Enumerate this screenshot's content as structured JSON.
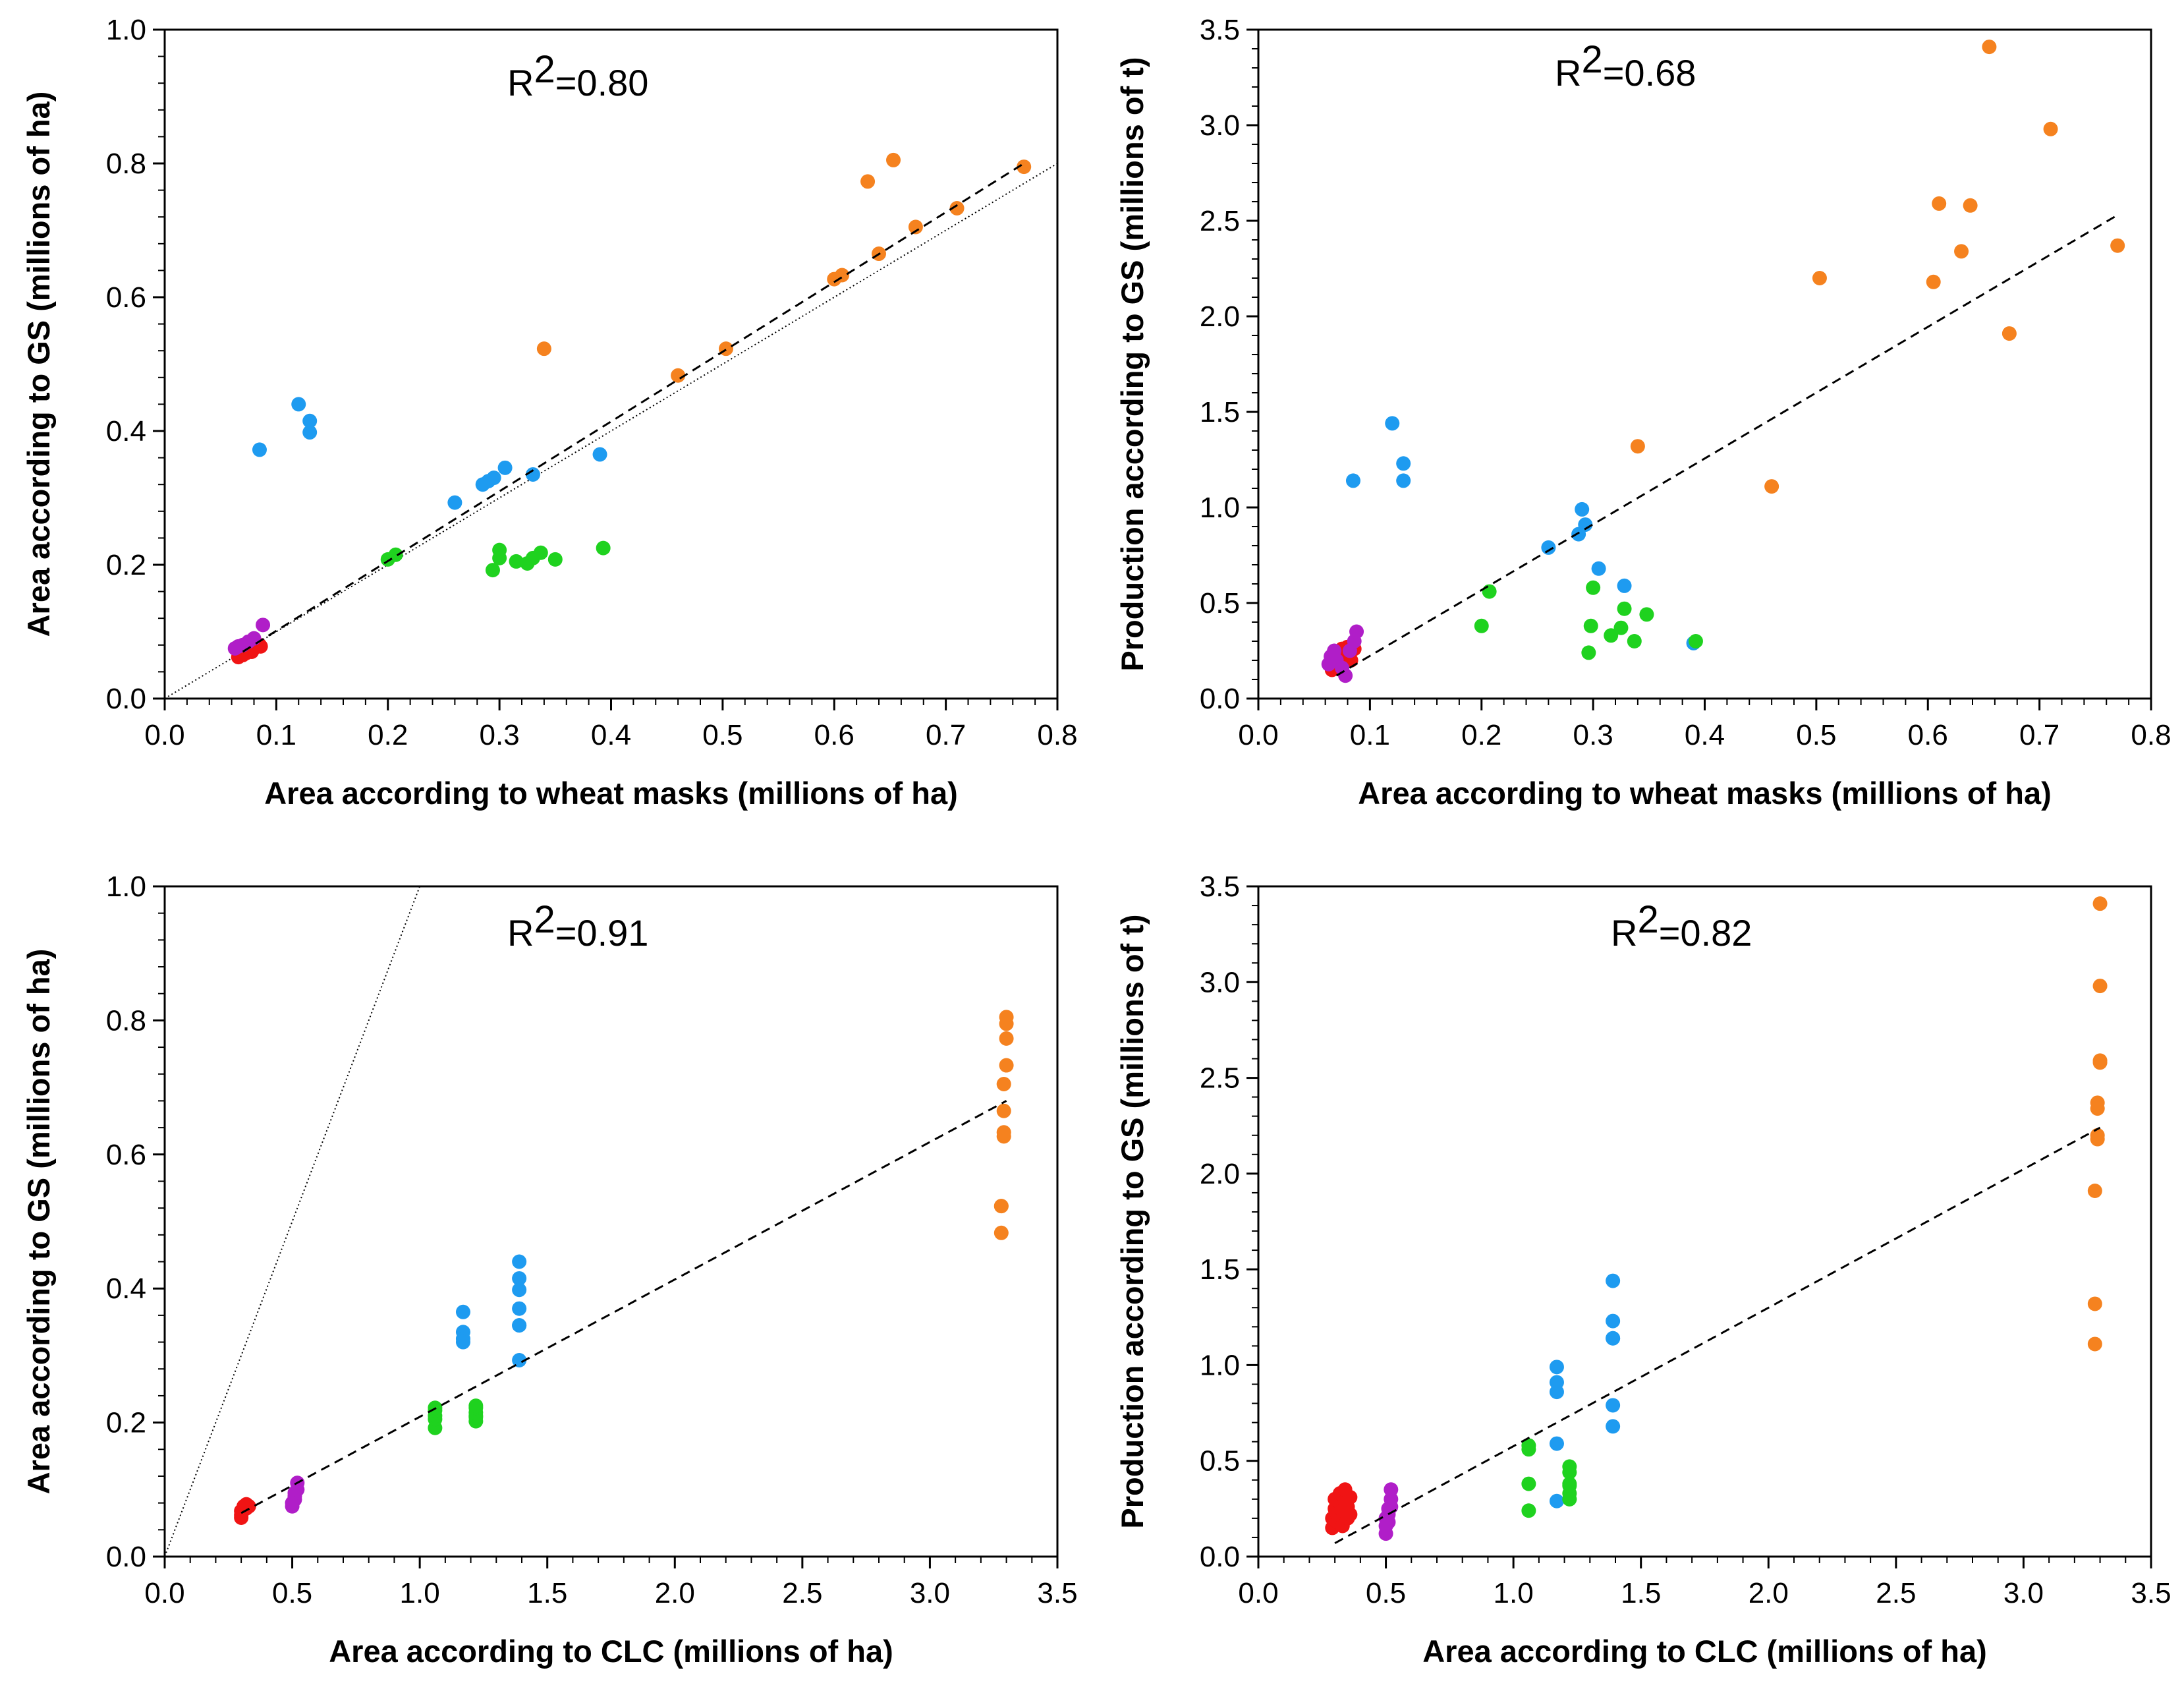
{
  "colors": {
    "orange": "#f5821f",
    "blue": "#1e9bf0",
    "green": "#1fd21f",
    "red": "#f01414",
    "purple": "#b01ec8",
    "line": "#000000"
  },
  "chart_data": [
    {
      "type": "scatter",
      "title": "",
      "annotation": {
        "prefix": "R",
        "sup": "2",
        "value": "=0.80"
      },
      "xlabel": "Area according to wheat masks (millions of ha)",
      "ylabel": "Area according to GS (millions of ha)",
      "xlim": [
        0,
        0.8
      ],
      "ylim": [
        0,
        1.0
      ],
      "xticks": [
        "0.0",
        "0.1",
        "0.2",
        "0.3",
        "0.4",
        "0.5",
        "0.6",
        "0.7",
        "0.8"
      ],
      "yticks": [
        "0.0",
        "0.2",
        "0.4",
        "0.6",
        "0.8",
        "1.0"
      ],
      "fit_line": {
        "x": [
          0.07,
          0.77
        ],
        "y": [
          0.07,
          0.8
        ]
      },
      "identity_line": {
        "x": [
          0,
          0.8
        ],
        "y": [
          0,
          0.8
        ]
      },
      "series": [
        {
          "name": "orange",
          "color": "orange",
          "x": [
            0.34,
            0.46,
            0.503,
            0.6,
            0.607,
            0.63,
            0.64,
            0.653,
            0.673,
            0.71,
            0.77
          ],
          "y": [
            0.523,
            0.483,
            0.523,
            0.627,
            0.633,
            0.773,
            0.665,
            0.805,
            0.705,
            0.733,
            0.795
          ]
        },
        {
          "name": "blue",
          "color": "blue",
          "x": [
            0.085,
            0.12,
            0.13,
            0.13,
            0.26,
            0.285,
            0.29,
            0.295,
            0.305,
            0.33,
            0.39
          ],
          "y": [
            0.372,
            0.44,
            0.415,
            0.398,
            0.293,
            0.32,
            0.325,
            0.33,
            0.345,
            0.335,
            0.365
          ]
        },
        {
          "name": "green",
          "color": "green",
          "x": [
            0.2,
            0.207,
            0.294,
            0.3,
            0.3,
            0.315,
            0.325,
            0.33,
            0.337,
            0.35,
            0.393
          ],
          "y": [
            0.208,
            0.215,
            0.192,
            0.222,
            0.21,
            0.205,
            0.202,
            0.21,
            0.218,
            0.208,
            0.225
          ]
        },
        {
          "name": "red",
          "color": "red",
          "x": [
            0.066,
            0.07,
            0.073,
            0.078,
            0.08,
            0.085,
            0.086
          ],
          "y": [
            0.062,
            0.065,
            0.068,
            0.07,
            0.075,
            0.08,
            0.078
          ]
        },
        {
          "name": "purple",
          "color": "purple",
          "x": [
            0.063,
            0.066,
            0.07,
            0.075,
            0.08,
            0.088
          ],
          "y": [
            0.075,
            0.078,
            0.08,
            0.085,
            0.09,
            0.11
          ]
        }
      ]
    },
    {
      "type": "scatter",
      "title": "",
      "annotation": {
        "prefix": "R",
        "sup": "2",
        "value": "=0.68"
      },
      "xlabel": "Area according to wheat masks (millions of ha)",
      "ylabel": "Production according to GS (millions of t)",
      "xlim": [
        0,
        0.8
      ],
      "ylim": [
        0,
        3.5
      ],
      "xticks": [
        "0.0",
        "0.1",
        "0.2",
        "0.3",
        "0.4",
        "0.5",
        "0.6",
        "0.7",
        "0.8"
      ],
      "yticks": [
        "0.0",
        "0.5",
        "1.0",
        "1.5",
        "2.0",
        "2.5",
        "3.0",
        "3.5"
      ],
      "fit_line": {
        "x": [
          0.07,
          0.77
        ],
        "y": [
          0.12,
          2.53
        ]
      },
      "series": [
        {
          "name": "orange",
          "color": "orange",
          "x": [
            0.34,
            0.46,
            0.503,
            0.605,
            0.61,
            0.63,
            0.638,
            0.655,
            0.673,
            0.71,
            0.77
          ],
          "y": [
            1.32,
            1.11,
            2.2,
            2.18,
            2.59,
            2.34,
            2.58,
            3.41,
            1.91,
            2.98,
            2.37
          ]
        },
        {
          "name": "blue",
          "color": "blue",
          "x": [
            0.085,
            0.12,
            0.13,
            0.13,
            0.26,
            0.287,
            0.29,
            0.293,
            0.305,
            0.328,
            0.39
          ],
          "y": [
            1.14,
            1.44,
            1.23,
            1.14,
            0.79,
            0.86,
            0.99,
            0.91,
            0.68,
            0.59,
            0.29
          ]
        },
        {
          "name": "green",
          "color": "green",
          "x": [
            0.2,
            0.207,
            0.296,
            0.298,
            0.3,
            0.316,
            0.325,
            0.328,
            0.337,
            0.348,
            0.392
          ],
          "y": [
            0.38,
            0.56,
            0.24,
            0.38,
            0.58,
            0.33,
            0.37,
            0.47,
            0.3,
            0.44,
            0.3
          ]
        },
        {
          "name": "red",
          "color": "red",
          "x": [
            0.066,
            0.07,
            0.072,
            0.075,
            0.078,
            0.08,
            0.083,
            0.086
          ],
          "y": [
            0.15,
            0.2,
            0.22,
            0.26,
            0.22,
            0.27,
            0.2,
            0.26
          ]
        },
        {
          "name": "purple",
          "color": "purple",
          "x": [
            0.063,
            0.065,
            0.068,
            0.07,
            0.075,
            0.078,
            0.082,
            0.086,
            0.088
          ],
          "y": [
            0.18,
            0.22,
            0.25,
            0.2,
            0.16,
            0.12,
            0.25,
            0.3,
            0.35
          ]
        }
      ]
    },
    {
      "type": "scatter",
      "title": "",
      "annotation": {
        "prefix": "R",
        "sup": "2",
        "value": "=0.91"
      },
      "xlabel": "Area according to CLC (millions of ha)",
      "ylabel": "Area according to GS (millions of ha)",
      "xlim": [
        0,
        3.5
      ],
      "ylim": [
        0,
        1.0
      ],
      "xticks": [
        "0.0",
        "0.5",
        "1.0",
        "1.5",
        "2.0",
        "2.5",
        "3.0",
        "3.5"
      ],
      "yticks": [
        "0.0",
        "0.2",
        "0.4",
        "0.6",
        "0.8",
        "1.0"
      ],
      "fit_line": {
        "x": [
          0.3,
          3.3
        ],
        "y": [
          0.065,
          0.68
        ]
      },
      "identity_line": {
        "x": [
          0,
          1.0
        ],
        "y": [
          0,
          1.0
        ]
      },
      "series": [
        {
          "name": "orange",
          "color": "orange",
          "x": [
            3.28,
            3.28,
            3.28,
            3.29,
            3.29,
            3.29,
            3.29,
            3.3,
            3.3,
            3.3,
            3.3
          ],
          "y": [
            0.483,
            0.523,
            0.523,
            0.627,
            0.633,
            0.665,
            0.705,
            0.733,
            0.773,
            0.795,
            0.805
          ]
        },
        {
          "name": "blue",
          "color": "blue",
          "x": [
            1.17,
            1.17,
            1.17,
            1.17,
            1.39,
            1.39,
            1.39,
            1.39,
            1.39,
            1.39,
            1.39
          ],
          "y": [
            0.365,
            0.335,
            0.325,
            0.32,
            0.44,
            0.415,
            0.398,
            0.37,
            0.345,
            0.345,
            0.293
          ]
        },
        {
          "name": "green",
          "color": "green",
          "x": [
            1.06,
            1.06,
            1.06,
            1.06,
            1.06,
            1.22,
            1.22,
            1.22,
            1.22,
            1.22,
            1.22
          ],
          "y": [
            0.192,
            0.205,
            0.21,
            0.218,
            0.222,
            0.202,
            0.208,
            0.21,
            0.215,
            0.222,
            0.225
          ]
        },
        {
          "name": "red",
          "color": "red",
          "x": [
            0.3,
            0.3,
            0.3,
            0.31,
            0.31,
            0.32,
            0.32,
            0.33
          ],
          "y": [
            0.058,
            0.062,
            0.068,
            0.07,
            0.075,
            0.072,
            0.078,
            0.075
          ]
        },
        {
          "name": "purple",
          "color": "purple",
          "x": [
            0.5,
            0.5,
            0.51,
            0.51,
            0.51,
            0.52,
            0.52
          ],
          "y": [
            0.075,
            0.08,
            0.085,
            0.09,
            0.095,
            0.1,
            0.11
          ]
        }
      ]
    },
    {
      "type": "scatter",
      "title": "",
      "annotation": {
        "prefix": "R",
        "sup": "2",
        "value": "=0.82"
      },
      "xlabel": "Area according to CLC (millions of ha)",
      "ylabel": "Production according to GS (millions of t)",
      "xlim": [
        0,
        3.5
      ],
      "ylim": [
        0,
        3.5
      ],
      "xticks": [
        "0.0",
        "0.5",
        "1.0",
        "1.5",
        "2.0",
        "2.5",
        "3.0",
        "3.5"
      ],
      "yticks": [
        "0.0",
        "0.5",
        "1.0",
        "1.5",
        "2.0",
        "2.5",
        "3.0",
        "3.5"
      ],
      "fit_line": {
        "x": [
          0.3,
          3.3
        ],
        "y": [
          0.07,
          2.24
        ]
      },
      "series": [
        {
          "name": "orange",
          "color": "orange",
          "x": [
            3.28,
            3.28,
            3.28,
            3.29,
            3.29,
            3.29,
            3.29,
            3.3,
            3.3,
            3.3,
            3.3
          ],
          "y": [
            1.11,
            1.32,
            1.91,
            2.18,
            2.2,
            2.34,
            2.37,
            2.58,
            2.59,
            2.98,
            3.41
          ]
        },
        {
          "name": "blue",
          "color": "blue",
          "x": [
            1.17,
            1.17,
            1.17,
            1.17,
            1.17,
            1.39,
            1.39,
            1.39,
            1.39,
            1.39,
            1.39
          ],
          "y": [
            0.29,
            0.59,
            0.86,
            0.91,
            0.99,
            0.68,
            0.79,
            1.14,
            1.14,
            1.23,
            1.44
          ]
        },
        {
          "name": "green",
          "color": "green",
          "x": [
            1.06,
            1.06,
            1.06,
            1.06,
            1.22,
            1.22,
            1.22,
            1.22,
            1.22,
            1.22,
            1.22
          ],
          "y": [
            0.24,
            0.38,
            0.56,
            0.58,
            0.3,
            0.33,
            0.37,
            0.38,
            0.44,
            0.47,
            0.3
          ]
        },
        {
          "name": "red",
          "color": "red",
          "x": [
            0.29,
            0.29,
            0.3,
            0.3,
            0.31,
            0.31,
            0.32,
            0.32,
            0.33,
            0.33,
            0.34,
            0.34,
            0.35,
            0.35,
            0.36,
            0.36
          ],
          "y": [
            0.15,
            0.2,
            0.25,
            0.3,
            0.18,
            0.22,
            0.28,
            0.33,
            0.16,
            0.24,
            0.29,
            0.35,
            0.2,
            0.26,
            0.31,
            0.22
          ]
        },
        {
          "name": "purple",
          "color": "purple",
          "x": [
            0.5,
            0.5,
            0.5,
            0.51,
            0.51,
            0.51,
            0.52,
            0.52,
            0.52
          ],
          "y": [
            0.12,
            0.16,
            0.2,
            0.18,
            0.22,
            0.25,
            0.3,
            0.35,
            0.26
          ]
        }
      ]
    }
  ]
}
